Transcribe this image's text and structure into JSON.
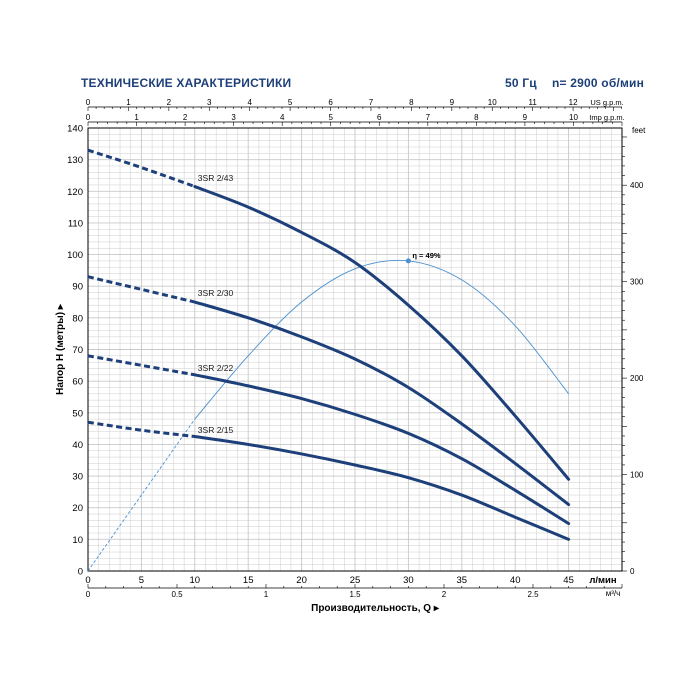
{
  "header": {
    "title": "ТЕХНИЧЕСКИЕ ХАРАКТЕРИСТИКИ",
    "frequency": "50 Гц",
    "speed": "n= 2900 об/мин"
  },
  "colors": {
    "curve": "#1d3f7a",
    "efficiency": "#4a90d0",
    "grid": "#c8c8c8",
    "axis": "#000000",
    "header": "#1d3f7a"
  },
  "chart_data": {
    "type": "line",
    "title": "",
    "xlabel": "Производительность, Q",
    "ylabel": "Напор H (метры)",
    "x_unit": "л/мин",
    "xlim": [
      0,
      50
    ],
    "ylim": [
      0,
      140
    ],
    "x_ticks": [
      0,
      5,
      10,
      15,
      20,
      25,
      30,
      35,
      40,
      45
    ],
    "y_ticks": [
      0,
      10,
      20,
      30,
      40,
      50,
      60,
      70,
      80,
      90,
      100,
      110,
      120,
      130,
      140
    ],
    "secondary_axes": {
      "us_gpm": {
        "label": "US g.p.m.",
        "ticks": [
          0,
          1,
          2,
          3,
          4,
          5,
          6,
          7,
          8,
          9,
          10,
          11,
          12
        ],
        "max": 13.21
      },
      "imp_gpm": {
        "label": "Imp g.p.m.",
        "ticks": [
          0,
          1,
          2,
          3,
          4,
          5,
          6,
          7,
          8,
          9,
          10
        ],
        "max": 11.0
      },
      "m3h": {
        "label": "м³/ч",
        "ticks": [
          "0",
          "0.5",
          "1",
          "1.5",
          "2",
          "2.5"
        ],
        "max": 3.0
      },
      "feet": {
        "label": "feet",
        "ticks": [
          0,
          100,
          200,
          300,
          400
        ],
        "max": 459.3
      }
    },
    "grid": true,
    "series": [
      {
        "name": "3SR 2/43",
        "dashed_to": 10,
        "x": [
          0,
          5,
          10,
          15,
          20,
          25,
          30,
          35,
          40,
          45
        ],
        "y": [
          133,
          127.5,
          121.5,
          115,
          107,
          97.5,
          84,
          68,
          49,
          29
        ]
      },
      {
        "name": "3SR 2/30",
        "dashed_to": 10,
        "x": [
          0,
          5,
          10,
          15,
          20,
          25,
          30,
          35,
          40,
          45
        ],
        "y": [
          93,
          89,
          85,
          80,
          74,
          67,
          58,
          46.5,
          34,
          21
        ]
      },
      {
        "name": "3SR 2/22",
        "dashed_to": 10,
        "x": [
          0,
          5,
          10,
          15,
          20,
          25,
          30,
          35,
          40,
          45
        ],
        "y": [
          68,
          65,
          62,
          58.5,
          54.5,
          49.5,
          43.5,
          35.5,
          25.5,
          15
        ]
      },
      {
        "name": "3SR 2/15",
        "dashed_to": 10,
        "x": [
          0,
          5,
          10,
          15,
          20,
          25,
          30,
          35,
          40,
          45
        ],
        "y": [
          47,
          44.5,
          42.5,
          40,
          37,
          33.5,
          29.5,
          24,
          17,
          10
        ]
      }
    ],
    "efficiency": {
      "label": "η = 49%",
      "peak": [
        30,
        98
      ],
      "dashed_to": 10,
      "x": [
        0,
        5,
        10,
        15,
        20,
        25,
        30,
        35,
        40,
        45
      ],
      "y": [
        0,
        24,
        48,
        68,
        85,
        95.5,
        98,
        92,
        77.5,
        56
      ]
    }
  }
}
